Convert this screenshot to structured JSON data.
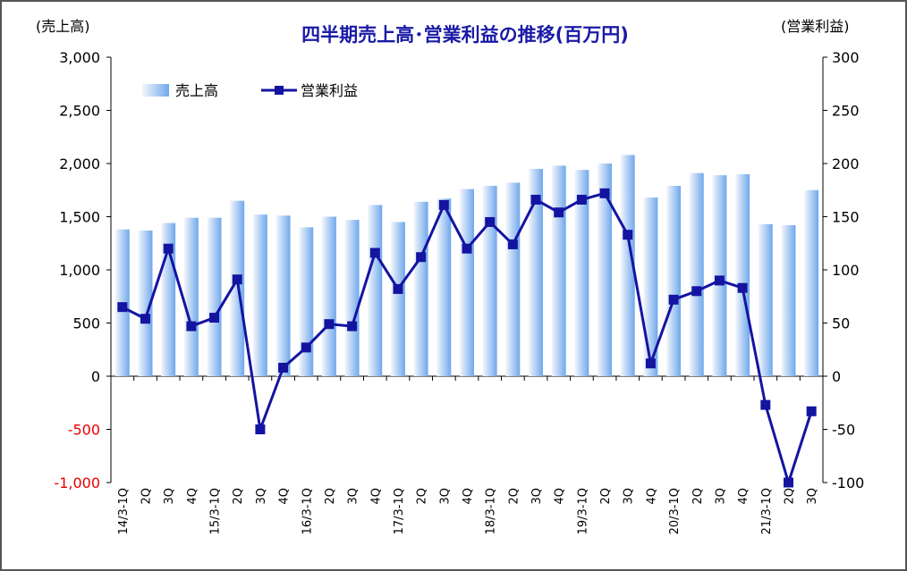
{
  "chart_data": {
    "type": "bar+line",
    "title": "四半期売上高･営業利益の推移(百万円)",
    "y_left_label": "(売上高)",
    "y_right_label": "(営業利益)",
    "y_left_ticks": [
      "3,000",
      "2,500",
      "2,000",
      "1,500",
      "1,000",
      "500",
      "0",
      "-500",
      "-1,000"
    ],
    "y_right_ticks": [
      "300",
      "250",
      "200",
      "150",
      "100",
      "50",
      "0",
      "-50",
      "-100"
    ],
    "ylim_left": [
      -1000,
      3000
    ],
    "ylim_right": [
      -100,
      300
    ],
    "categories": [
      "14/3-1Q",
      "2Q",
      "3Q",
      "4Q",
      "15/3-1Q",
      "2Q",
      "3Q",
      "4Q",
      "16/3-1Q",
      "2Q",
      "3Q",
      "4Q",
      "17/3-1Q",
      "2Q",
      "3Q",
      "4Q",
      "18/3-1Q",
      "2Q",
      "3Q",
      "4Q",
      "19/3-1Q",
      "2Q",
      "3Q",
      "4Q",
      "20/3-1Q",
      "2Q",
      "3Q",
      "4Q",
      "21/3-1Q",
      "2Q",
      "3Q"
    ],
    "series": [
      {
        "name": "売上高",
        "axis": "left",
        "kind": "bar",
        "values": [
          1380,
          1370,
          1440,
          1490,
          1490,
          1650,
          1520,
          1510,
          1400,
          1500,
          1470,
          1610,
          1450,
          1640,
          1670,
          1760,
          1790,
          1820,
          1950,
          1980,
          1940,
          2000,
          2080,
          1680,
          1790,
          1910,
          1890,
          1900,
          1430,
          1420,
          1750
        ]
      },
      {
        "name": "営業利益",
        "axis": "right",
        "kind": "line",
        "values": [
          65,
          54,
          120,
          47,
          55,
          91,
          -50,
          8,
          27,
          49,
          47,
          116,
          82,
          112,
          161,
          120,
          145,
          124,
          166,
          154,
          166,
          172,
          133,
          12,
          72,
          80,
          90,
          83,
          -27,
          -100,
          -33
        ]
      }
    ],
    "legend_position": "top-left",
    "colors": {
      "bar_light": "#ffffff",
      "bar_dark": "#6fa8ec",
      "line": "#1414a0",
      "negative_tick": "#e60000",
      "title": "#1a1aa6"
    }
  }
}
